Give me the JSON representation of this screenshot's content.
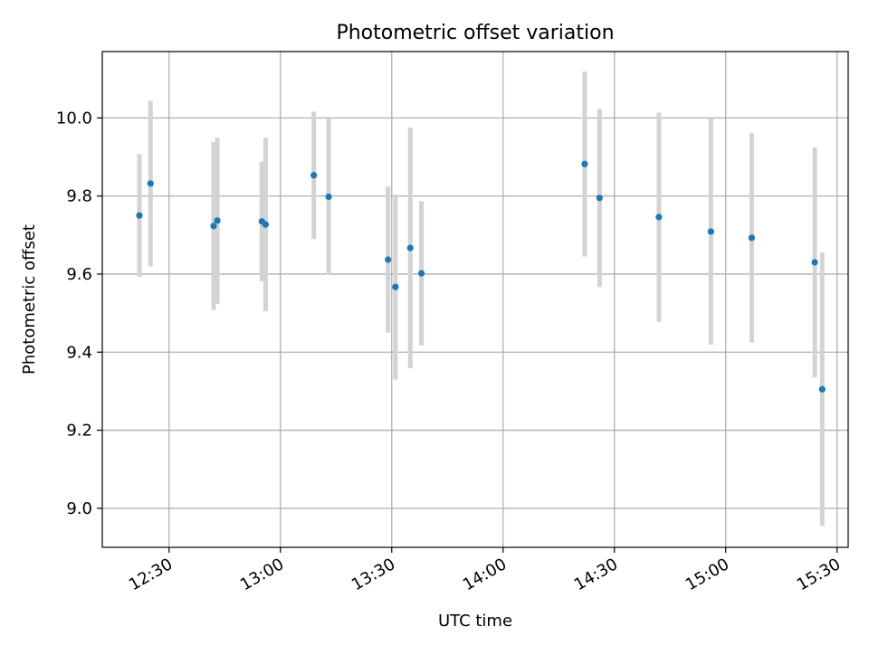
{
  "chart_data": {
    "type": "scatter",
    "title": "Photometric offset variation",
    "xlabel": "UTC time",
    "ylabel": "Photometric offset",
    "x_ticks": [
      "12:30",
      "13:00",
      "13:30",
      "14:00",
      "14:30",
      "15:00",
      "15:30"
    ],
    "y_ticks": [
      "9.0",
      "9.2",
      "9.4",
      "9.6",
      "9.8",
      "10.0"
    ],
    "xlim": [
      "12:12",
      "15:33"
    ],
    "ylim": [
      8.9,
      10.17
    ],
    "grid": true,
    "series": [
      {
        "marker_color": "#1f77b4",
        "errorbar_color": "#d3d3d3",
        "points": [
          {
            "x": "12:22",
            "y": 9.75,
            "yerr": 0.157
          },
          {
            "x": "12:25",
            "y": 9.832,
            "yerr": 0.212
          },
          {
            "x": "12:42",
            "y": 9.723,
            "yerr": 0.215
          },
          {
            "x": "12:43",
            "y": 9.737,
            "yerr": 0.213
          },
          {
            "x": "12:55",
            "y": 9.735,
            "yerr": 0.153
          },
          {
            "x": "12:56",
            "y": 9.727,
            "yerr": 0.222
          },
          {
            "x": "13:09",
            "y": 9.853,
            "yerr": 0.163
          },
          {
            "x": "13:13",
            "y": 9.798,
            "yerr": 0.2
          },
          {
            "x": "13:29",
            "y": 9.637,
            "yerr": 0.187
          },
          {
            "x": "13:31",
            "y": 9.567,
            "yerr": 0.237
          },
          {
            "x": "13:35",
            "y": 9.667,
            "yerr": 0.308
          },
          {
            "x": "13:38",
            "y": 9.602,
            "yerr": 0.185
          },
          {
            "x": "14:22",
            "y": 9.882,
            "yerr": 0.237
          },
          {
            "x": "14:26",
            "y": 9.795,
            "yerr": 0.228
          },
          {
            "x": "14:42",
            "y": 9.746,
            "yerr": 0.268
          },
          {
            "x": "14:56",
            "y": 9.709,
            "yerr": 0.29
          },
          {
            "x": "15:07",
            "y": 9.693,
            "yerr": 0.268
          },
          {
            "x": "15:24",
            "y": 9.63,
            "yerr": 0.295
          },
          {
            "x": "15:26",
            "y": 9.305,
            "yerr": 0.35
          }
        ]
      }
    ]
  }
}
